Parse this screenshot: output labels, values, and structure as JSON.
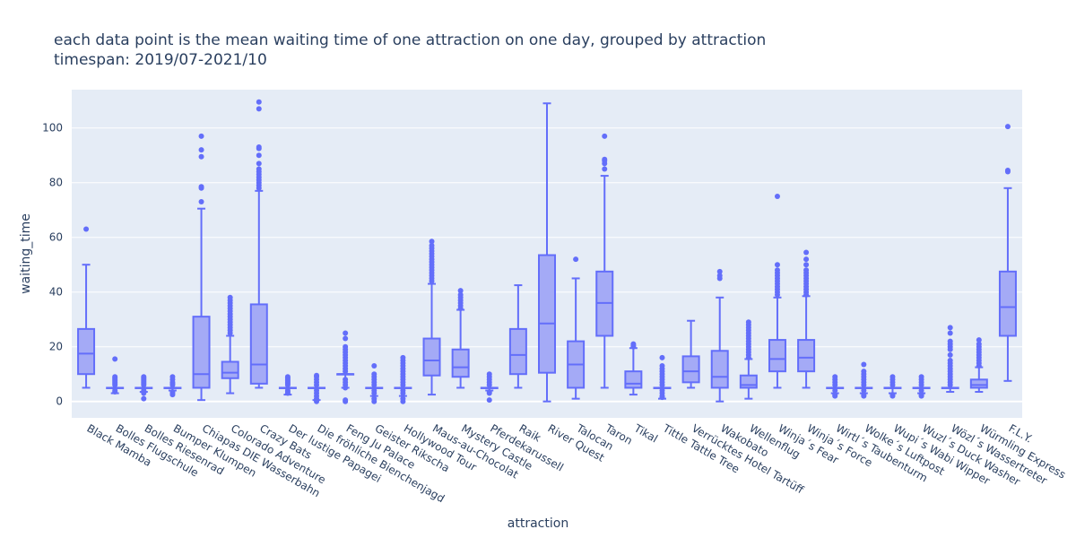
{
  "chart_data": {
    "type": "box",
    "title_line1": "each data point is the mean waiting time of one attraction on one day, grouped by attraction",
    "title_line2": "timespan: 2019/07-2021/10",
    "xlabel": "attraction",
    "ylabel": "waiting_time",
    "ylim": [
      -6,
      114
    ],
    "yticks": [
      0,
      20,
      40,
      60,
      80,
      100
    ],
    "grid": true,
    "colors": {
      "box_line": "#636efa",
      "box_fill": "#a4aaf6",
      "plot_bg": "#e5ecf6",
      "grid": "#ffffff",
      "text": "#2a3f5f"
    },
    "categories": [
      "Black Mamba",
      "Bolles Flugschule",
      "Bolles Riesenrad",
      "Bumper Klumpen",
      "Chiapas DIE Wasserbahn",
      "Colorado Adventure",
      "Crazy Bats",
      "Der lustige Papagei",
      "Die fröhliche Bienchenjagd",
      "Feng Ju Palace",
      "Geister Rikscha",
      "Hollywood Tour",
      "Maus-au-Chocolat",
      "Mystery Castle",
      "Pferdekarussell",
      "Raik",
      "River Quest",
      "Talocan",
      "Taron",
      "Tikal",
      "Tittle Tattle Tree",
      "Verrücktes Hotel Tartüff",
      "Wakobato",
      "Wellenflug",
      "Winja´s Fear",
      "Winja´s Force",
      "Wirtl´s Taubenturm",
      "Wolke´s Luftpost",
      "Wupi´s Wabi Wipper",
      "Wuzl´s Duck Washer",
      "Wözl´s Wassertreter",
      "Würmling Express",
      "F.L.Y."
    ],
    "boxes": [
      {
        "min": 5,
        "q1": 10,
        "median": 17.5,
        "q3": 26.5,
        "max": 50,
        "outliers": [
          63
        ]
      },
      {
        "min": 3,
        "q1": 5,
        "median": 5,
        "q3": 5,
        "max": 5,
        "outliers": [
          3.5,
          4,
          6,
          6.5,
          7,
          7.5,
          8,
          8.5,
          9,
          15.5
        ]
      },
      {
        "min": 3.5,
        "q1": 5,
        "median": 5,
        "q3": 5,
        "max": 5,
        "outliers": [
          1,
          3,
          4,
          6,
          6.5,
          7,
          7.5,
          8,
          8.5,
          9
        ]
      },
      {
        "min": 4,
        "q1": 5,
        "median": 5,
        "q3": 5,
        "max": 5,
        "outliers": [
          2.5,
          3,
          3.5,
          6,
          6.5,
          7,
          8,
          9
        ]
      },
      {
        "min": 0.5,
        "q1": 5,
        "median": 10,
        "q3": 31,
        "max": 70.5,
        "outliers": [
          73,
          78,
          78.5,
          89.5,
          92,
          97
        ]
      },
      {
        "min": 3,
        "q1": 8.5,
        "median": 10.5,
        "q3": 14.5,
        "max": 24,
        "outliers": [
          25,
          26,
          27,
          28,
          29,
          30,
          31,
          32,
          33,
          34,
          35,
          36,
          37,
          38
        ]
      },
      {
        "min": 5,
        "q1": 6.5,
        "median": 13.5,
        "q3": 35.5,
        "max": 77,
        "outliers": [
          78,
          79,
          80,
          81,
          82,
          83,
          84,
          85,
          87,
          90,
          92.5,
          93,
          107,
          109.5
        ]
      },
      {
        "min": 2.5,
        "q1": 5,
        "median": 5,
        "q3": 5,
        "max": 5,
        "outliers": [
          3,
          3.5,
          4,
          6,
          6.5,
          7,
          7.5,
          8,
          8.5,
          9
        ]
      },
      {
        "min": 0.5,
        "q1": 5,
        "median": 5,
        "q3": 5,
        "max": 5,
        "outliers": [
          0,
          1,
          2,
          3,
          4,
          6,
          7,
          8,
          9,
          9.5
        ]
      },
      {
        "min": 5,
        "q1": 10,
        "median": 10,
        "q3": 10,
        "max": 10,
        "outliers": [
          0,
          0.5,
          5,
          6,
          7,
          8,
          11,
          12,
          13,
          14,
          15,
          16,
          17,
          18,
          19,
          20,
          23,
          25
        ]
      },
      {
        "min": 2,
        "q1": 5,
        "median": 5,
        "q3": 5,
        "max": 5,
        "outliers": [
          0,
          1,
          3,
          4,
          6,
          7,
          8,
          9,
          10,
          13
        ]
      },
      {
        "min": 2,
        "q1": 5,
        "median": 5,
        "q3": 5,
        "max": 5,
        "outliers": [
          0,
          1,
          3,
          4,
          6,
          7,
          8,
          9,
          10,
          11,
          12,
          13,
          14,
          15,
          16
        ]
      },
      {
        "min": 2.5,
        "q1": 9.5,
        "median": 15,
        "q3": 23,
        "max": 43,
        "outliers": [
          44,
          45,
          46,
          47,
          48,
          49,
          50,
          51,
          52,
          53,
          54,
          55,
          56,
          57,
          58.5
        ]
      },
      {
        "min": 5,
        "q1": 9,
        "median": 12.5,
        "q3": 19,
        "max": 33.5,
        "outliers": [
          34,
          35,
          36,
          37,
          38,
          39,
          40.5
        ]
      },
      {
        "min": 4,
        "q1": 5,
        "median": 5,
        "q3": 5,
        "max": 5,
        "outliers": [
          0.5,
          3,
          3.5,
          6,
          7,
          8,
          9,
          10
        ]
      },
      {
        "min": 5,
        "q1": 10,
        "median": 17,
        "q3": 26.5,
        "max": 42.5,
        "outliers": []
      },
      {
        "min": 0,
        "q1": 10.5,
        "median": 28.5,
        "q3": 53.5,
        "max": 109,
        "outliers": []
      },
      {
        "min": 1,
        "q1": 5,
        "median": 13.5,
        "q3": 22,
        "max": 45,
        "outliers": [
          52
        ]
      },
      {
        "min": 5,
        "q1": 24,
        "median": 36,
        "q3": 47.5,
        "max": 82.5,
        "outliers": [
          85,
          87,
          88,
          88.5,
          97
        ]
      },
      {
        "min": 2.5,
        "q1": 5,
        "median": 6.5,
        "q3": 11,
        "max": 19.5,
        "outliers": [
          20,
          20.5,
          21
        ]
      },
      {
        "min": 1,
        "q1": 5,
        "median": 5,
        "q3": 5,
        "max": 5,
        "outliers": [
          1.5,
          2,
          3,
          4,
          6,
          7,
          8,
          9,
          10,
          11,
          12,
          13,
          16
        ]
      },
      {
        "min": 5,
        "q1": 7,
        "median": 11,
        "q3": 16.5,
        "max": 29.5,
        "outliers": []
      },
      {
        "min": 0,
        "q1": 5,
        "median": 9,
        "q3": 18.5,
        "max": 38,
        "outliers": [
          45,
          46,
          47.5
        ]
      },
      {
        "min": 1,
        "q1": 5,
        "median": 6,
        "q3": 9.5,
        "max": 15.5,
        "outliers": [
          16,
          17,
          18,
          19,
          20,
          21,
          22,
          23,
          24,
          25,
          26,
          27,
          28,
          29
        ]
      },
      {
        "min": 5,
        "q1": 11,
        "median": 15.5,
        "q3": 22.5,
        "max": 38,
        "outliers": [
          39,
          40,
          41,
          42,
          43,
          44,
          45,
          46,
          47,
          48,
          50,
          75
        ]
      },
      {
        "min": 5,
        "q1": 11,
        "median": 16,
        "q3": 22.5,
        "max": 38.5,
        "outliers": [
          39,
          40,
          41,
          42,
          43,
          44,
          45,
          46,
          47,
          48,
          50,
          52,
          54.5
        ]
      },
      {
        "min": 3,
        "q1": 5,
        "median": 5,
        "q3": 5,
        "max": 5,
        "outliers": [
          2,
          2.5,
          4,
          6,
          7,
          8,
          9
        ]
      },
      {
        "min": 3,
        "q1": 5,
        "median": 5,
        "q3": 5,
        "max": 5,
        "outliers": [
          2,
          2.5,
          4,
          6,
          7,
          8,
          9,
          10,
          11,
          13.5
        ]
      },
      {
        "min": 3,
        "q1": 5,
        "median": 5,
        "q3": 5,
        "max": 5,
        "outliers": [
          2,
          2.5,
          6,
          7,
          8,
          9
        ]
      },
      {
        "min": 3,
        "q1": 5,
        "median": 5,
        "q3": 5,
        "max": 5,
        "outliers": [
          2,
          2.5,
          4,
          6,
          7,
          8,
          9
        ]
      },
      {
        "min": 3.5,
        "q1": 5,
        "median": 5,
        "q3": 5,
        "max": 5,
        "outliers": [
          6,
          7,
          8,
          9,
          10,
          11,
          12,
          13,
          14,
          15,
          17,
          19,
          20,
          21,
          22,
          25,
          27
        ]
      },
      {
        "min": 3.5,
        "q1": 5,
        "median": 6,
        "q3": 8,
        "max": 12.5,
        "outliers": [
          13,
          14,
          15,
          16,
          17,
          18,
          19,
          20,
          21,
          22.5
        ]
      },
      {
        "min": 7.5,
        "q1": 24,
        "median": 34.5,
        "q3": 47.5,
        "max": 78,
        "outliers": [
          84,
          84.5,
          100.5
        ]
      }
    ]
  }
}
